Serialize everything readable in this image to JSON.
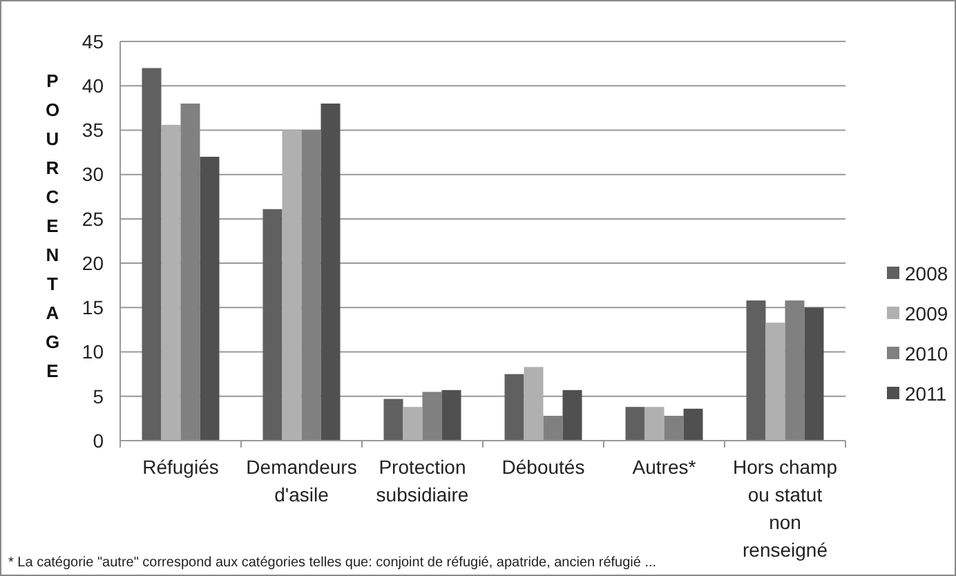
{
  "chart_data": {
    "type": "bar",
    "ylabel": "POURCENTAGE",
    "categories": [
      "Réfugiés",
      "Demandeurs d'asile",
      "Protection subsidiaire",
      "Déboutés",
      "Autres*",
      "Hors champ ou statut non renseigné"
    ],
    "series": [
      {
        "name": "2008",
        "color": "#606060",
        "values": [
          42,
          26.1,
          4.7,
          7.5,
          3.8,
          15.8
        ]
      },
      {
        "name": "2009",
        "color": "#b0b0b0",
        "values": [
          35.6,
          35,
          3.8,
          8.3,
          3.8,
          13.3
        ]
      },
      {
        "name": "2010",
        "color": "#808080",
        "values": [
          38,
          35,
          5.5,
          2.8,
          2.8,
          15.8
        ]
      },
      {
        "name": "2011",
        "color": "#505050",
        "values": [
          32,
          38,
          5.7,
          5.7,
          3.6,
          15
        ]
      }
    ],
    "ylim": [
      0,
      45
    ],
    "yticks": [
      0,
      5,
      10,
      15,
      20,
      25,
      30,
      35,
      40,
      45
    ],
    "grid": "y",
    "legend": "right",
    "annotations": [
      "* La catégorie \"autre\" correspond aux catégories telles que: conjoint de réfugié, apatride, ancien réfugié ..."
    ]
  }
}
